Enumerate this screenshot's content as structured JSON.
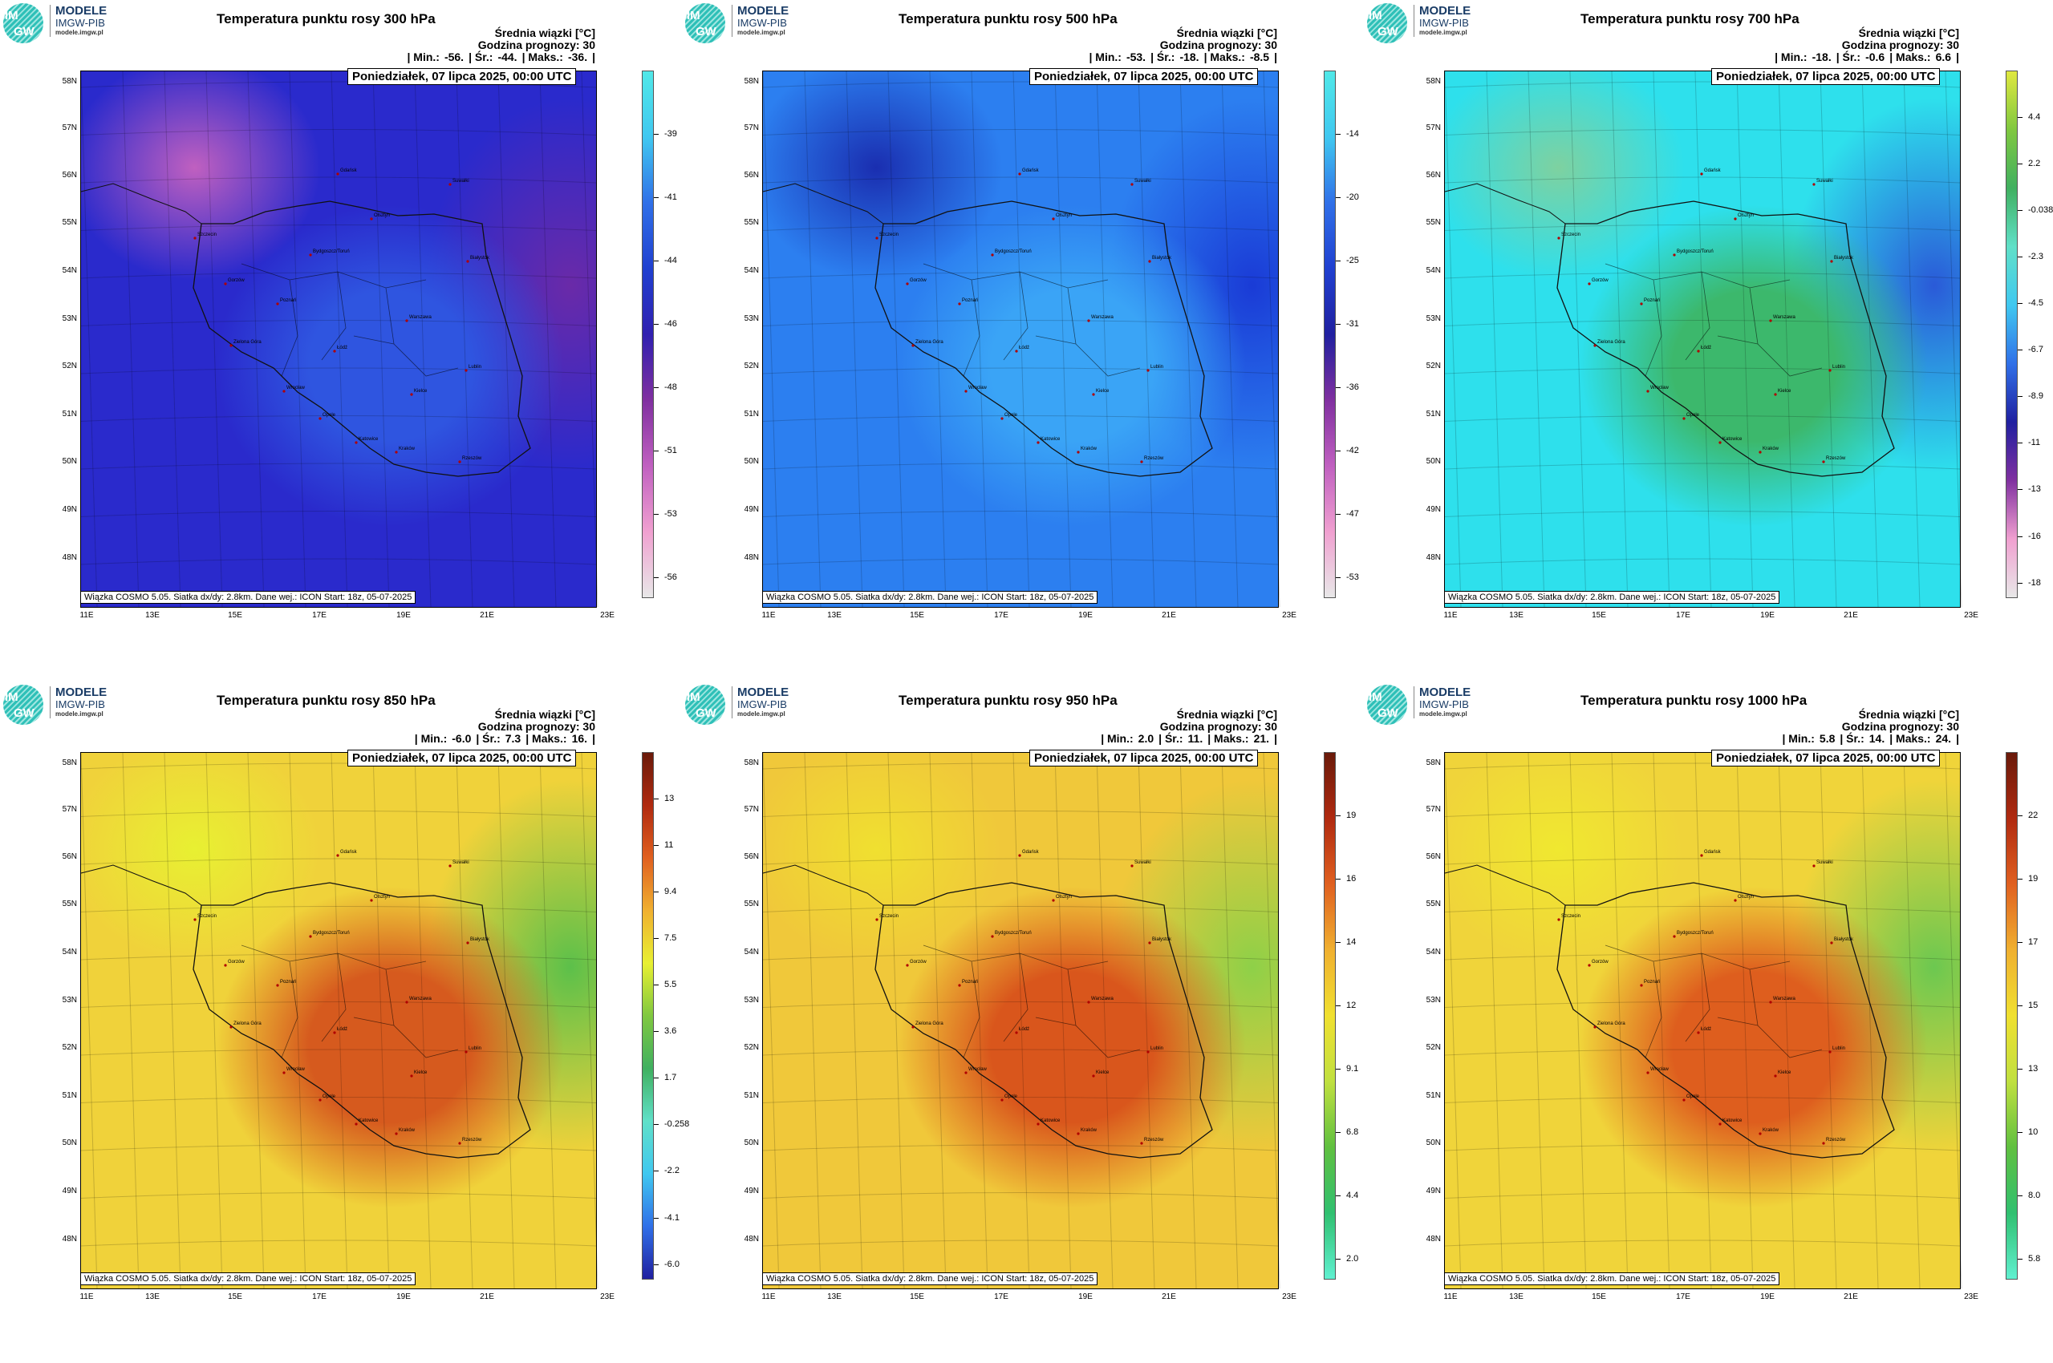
{
  "logo": {
    "brand": "MODELE",
    "org": "IMGW-PIB",
    "url": "modele.imgw.pl",
    "glyph_top": "IM",
    "glyph_bottom": "GW"
  },
  "common": {
    "mean_label": "Średnia wiązki [°C]",
    "forecast_hour": "Godzina prognozy: 30",
    "valid_time": "Poniedziałek, 07 lipca 2025, 00:00 UTC",
    "credit": "Wiązka COSMO 5.05. Siatka dx/dy: 2.8km. Dane wej.: ICON Start: 18z, 05-07-2025",
    "lat_labels": [
      "58N",
      "57N",
      "56N",
      "55N",
      "54N",
      "53N",
      "52N",
      "51N",
      "50N",
      "49N",
      "48N"
    ],
    "lon_labels": [
      "11E",
      "13E",
      "15E",
      "17E",
      "19E",
      "21E",
      "23E"
    ],
    "stat_min": "| Min.:",
    "stat_avg": "| Śr.:",
    "stat_max": "| Maks.:",
    "stat_end": "|"
  },
  "panels": [
    {
      "title": "Temperatura punktu rosy 300 hPa",
      "min": "-56.",
      "avg": "-44.",
      "max": "-36.",
      "colorbar_labels": [
        "-39",
        "-41",
        "-44",
        "-46",
        "-48",
        "-51",
        "-53",
        "-56"
      ],
      "colors": {
        "base": "#2a2acc",
        "mid": "#2f55e0",
        "edge": "#6a2aa8",
        "accent": "#c060c0"
      },
      "colorbar_colors": [
        "#e8e8e8",
        "#f0a0d0",
        "#c060c0",
        "#8030a0",
        "#3020b0",
        "#2040d0",
        "#3070e8",
        "#40c8f0",
        "#50e8e8"
      ]
    },
    {
      "title": "Temperatura punktu rosy 500 hPa",
      "min": "-53.",
      "avg": "-18.",
      "max": "-8.5",
      "colorbar_labels": [
        "-14",
        "-20",
        "-25",
        "-31",
        "-36",
        "-42",
        "-47",
        "-53"
      ],
      "colors": {
        "base": "#2c7ff0",
        "mid": "#3aa4f6",
        "edge": "#1a3bd6",
        "accent": "#1a2eb0"
      },
      "colorbar_colors": [
        "#e8e8e8",
        "#f0a0d0",
        "#c060c0",
        "#8030a0",
        "#2020a0",
        "#2040d0",
        "#3070e8",
        "#40c8f0",
        "#50e8e8"
      ]
    },
    {
      "title": "Temperatura punktu rosy 700 hPa",
      "min": "-18.",
      "avg": "-0.6",
      "max": "6.6",
      "colorbar_labels": [
        "4.4",
        "2.2",
        "-0.038",
        "-2.3",
        "-4.5",
        "-6.7",
        "-8.9",
        "-11",
        "-13",
        "-16",
        "-18"
      ],
      "colors": {
        "base": "#2ee0ec",
        "mid": "#3cb86c",
        "edge": "#2a5ad8",
        "accent": "#7ed1a0"
      },
      "colorbar_colors": [
        "#e8e8e8",
        "#f0a0d0",
        "#8030a0",
        "#2020a0",
        "#3070e8",
        "#40c8f0",
        "#60e0c8",
        "#40b060",
        "#80c840",
        "#e0e840"
      ]
    },
    {
      "title": "Temperatura punktu rosy 850 hPa",
      "min": "-6.0",
      "avg": "7.3",
      "max": "16.",
      "colorbar_labels": [
        "13",
        "11",
        "9.4",
        "7.5",
        "5.5",
        "3.6",
        "1.7",
        "-0.258",
        "-2.2",
        "-4.1",
        "-6.0"
      ],
      "colors": {
        "base": "#f0d23a",
        "mid": "#d65a1e",
        "edge": "#5cc04a",
        "accent": "#e8f032"
      },
      "colorbar_colors": [
        "#2020a0",
        "#3070e8",
        "#40c8f0",
        "#60e0c8",
        "#40b060",
        "#80c840",
        "#e8f032",
        "#f0b030",
        "#e06020",
        "#b02a10",
        "#6a1a0a"
      ]
    },
    {
      "title": "Temperatura punktu rosy 950 hPa",
      "min": "2.0",
      "avg": "11.",
      "max": "21.",
      "colorbar_labels": [
        "19",
        "16",
        "14",
        "12",
        "9.1",
        "6.8",
        "4.4",
        "2.0"
      ],
      "colors": {
        "base": "#f0c83a",
        "mid": "#d9561c",
        "edge": "#8ed048",
        "accent": "#f0e030"
      },
      "colorbar_colors": [
        "#60f0d0",
        "#30c070",
        "#60c040",
        "#c0e040",
        "#f0e030",
        "#f0b030",
        "#e06020",
        "#b02a10",
        "#6a1a0a"
      ]
    },
    {
      "title": "Temperatura punktu rosy 1000 hPa",
      "min": "5.8",
      "avg": "14.",
      "max": "24.",
      "colorbar_labels": [
        "22",
        "19",
        "17",
        "15",
        "13",
        "10",
        "8.0",
        "5.8"
      ],
      "colors": {
        "base": "#f0d43a",
        "mid": "#de5e1e",
        "edge": "#6cc850",
        "accent": "#f0e830"
      },
      "colorbar_colors": [
        "#60f0d0",
        "#30c070",
        "#60c040",
        "#c0e040",
        "#f0e030",
        "#f0b030",
        "#e06020",
        "#b02a10",
        "#6a1a0a"
      ]
    }
  ],
  "cities": [
    "Gdańsk",
    "Szczecin",
    "Olsztyn",
    "Suwałki",
    "Białystok",
    "Bydgoszcz/Toruń",
    "Gorzów",
    "Poznań",
    "Warszawa",
    "Zielona Góra",
    "Łódź",
    "Lublin",
    "Wrocław",
    "Kielce",
    "Opole",
    "Katowice",
    "Kraków",
    "Rzeszów"
  ]
}
